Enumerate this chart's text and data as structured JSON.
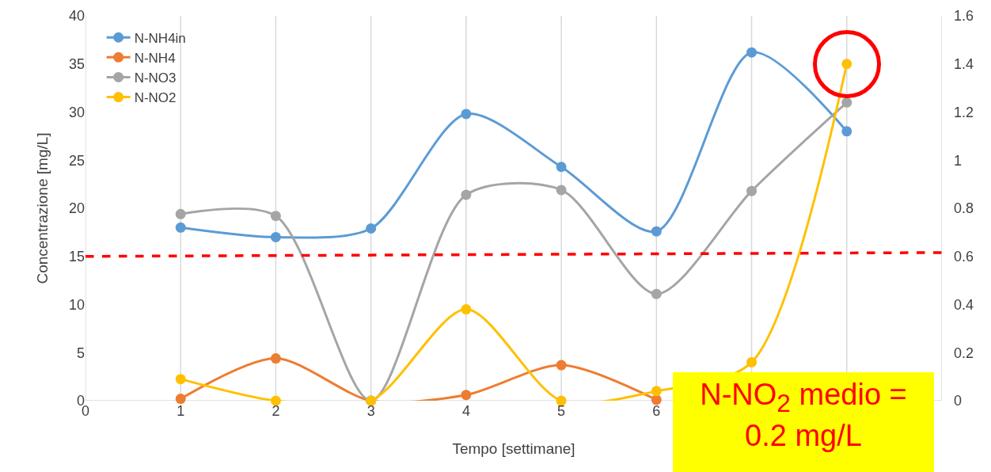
{
  "chart_data": {
    "type": "line",
    "xlabel": "Tempo [settimane]",
    "ylabel": "Concentrazione [mg/L]",
    "x": [
      1,
      2,
      3,
      4,
      5,
      6,
      7,
      8
    ],
    "series": [
      {
        "name": "N-NH4in",
        "color": "#5b9bd5",
        "values": [
          18,
          17,
          17.9,
          29.8,
          24.3,
          17.6,
          36.2,
          28
        ]
      },
      {
        "name": "N-NH4",
        "color": "#ed7d31",
        "values": [
          0.2,
          4.4,
          0,
          0.6,
          3.7,
          0.1,
          null,
          null
        ]
      },
      {
        "name": "N-NO3",
        "color": "#a5a5a5",
        "values": [
          19.4,
          19.2,
          0,
          21.4,
          21.9,
          11.1,
          21.8,
          31
        ]
      },
      {
        "name": "N-NO2",
        "color": "#ffc000",
        "axis": "y2",
        "values": [
          0.09,
          0,
          0,
          0.38,
          0,
          0.04,
          0.16,
          1.4
        ]
      },
      {
        "type": "line",
        "color": "#ff0000",
        "x": [
          0,
          9
        ],
        "values": [
          15,
          15.4
        ],
        "line_style": "dashed",
        "marker": "none"
      }
    ],
    "xlim": [
      0,
      9
    ],
    "xticks": [
      0,
      1,
      2,
      3,
      4,
      5,
      6,
      {
        "value": 7,
        "label": null
      },
      {
        "value": 8,
        "label": null
      },
      {
        "value": 9,
        "label": null
      }
    ],
    "ylim": [
      0,
      40
    ],
    "yticks": [
      0,
      5,
      10,
      15,
      20,
      25,
      30,
      35,
      40
    ],
    "y2lim": [
      0,
      1.6
    ],
    "y2ticks": [
      0,
      0.2,
      0.4,
      0.6,
      0.8,
      1,
      1.2,
      1.4,
      1.6
    ],
    "grid": "x",
    "legend": "top left",
    "marker": "circle",
    "line_style": "solid",
    "annotations": [
      "N-NO$_{2}$ medio = 0.2 mg/L"
    ]
  }
}
